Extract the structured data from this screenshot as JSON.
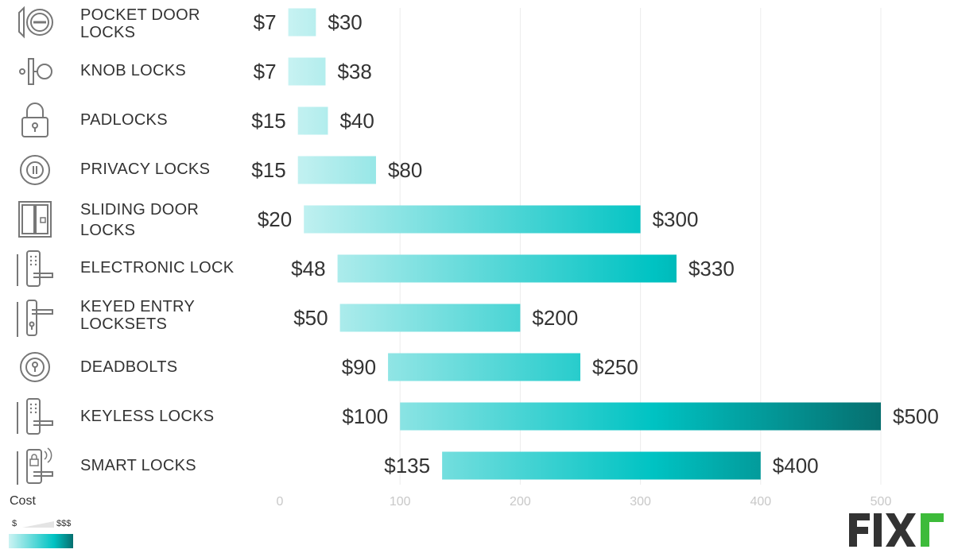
{
  "chart_data": {
    "type": "bar",
    "subtype": "floating-range",
    "categories": [
      "POCKET DOOR LOCKS",
      "KNOB LOCKS",
      "PADLOCKS",
      "PRIVACY LOCKS",
      "SLIDING DOOR LOCKS",
      "ELECTRONIC LOCK",
      "KEYED ENTRY LOCKSETS",
      "DEADBOLTS",
      "KEYLESS LOCKS",
      "SMART LOCKS"
    ],
    "ranges": [
      {
        "low": 7,
        "high": 30,
        "low_label": "$7",
        "high_label": "$30"
      },
      {
        "low": 7,
        "high": 38,
        "low_label": "$7",
        "high_label": "$38"
      },
      {
        "low": 15,
        "high": 40,
        "low_label": "$15",
        "high_label": "$40"
      },
      {
        "low": 15,
        "high": 80,
        "low_label": "$15",
        "high_label": "$80"
      },
      {
        "low": 20,
        "high": 300,
        "low_label": "$20",
        "high_label": "$300"
      },
      {
        "low": 48,
        "high": 330,
        "low_label": "$48",
        "high_label": "$330"
      },
      {
        "low": 50,
        "high": 200,
        "low_label": "$50",
        "high_label": "$200"
      },
      {
        "low": 90,
        "high": 250,
        "low_label": "$90",
        "high_label": "$250"
      },
      {
        "low": 100,
        "high": 500,
        "low_label": "$100",
        "high_label": "$500"
      },
      {
        "low": 135,
        "high": 400,
        "low_label": "$135",
        "high_label": "$400"
      }
    ],
    "xlim": [
      0,
      500
    ],
    "xticks": [
      0,
      100,
      200,
      300,
      400,
      500
    ],
    "grid": true,
    "colors": {
      "low": "#ccf3f3",
      "mid": "#00c3c3",
      "high": "#066f6f"
    }
  },
  "rows": [
    {
      "label": "POCKET DOOR LOCKS",
      "icon": "pocket-door-lock-icon"
    },
    {
      "label": "KNOB LOCKS",
      "icon": "knob-lock-icon"
    },
    {
      "label": "PADLOCKS",
      "icon": "padlock-icon"
    },
    {
      "label": "PRIVACY LOCKS",
      "icon": "privacy-lock-icon"
    },
    {
      "label": "SLIDING DOOR LOCKS",
      "icon": "sliding-door-lock-icon"
    },
    {
      "label": "ELECTRONIC LOCK",
      "icon": "electronic-lock-icon"
    },
    {
      "label": "KEYED ENTRY LOCKSETS",
      "icon": "keyed-entry-lockset-icon"
    },
    {
      "label": "DEADBOLTS",
      "icon": "deadbolt-icon"
    },
    {
      "label": "KEYLESS LOCKS",
      "icon": "keyless-lock-icon"
    },
    {
      "label": "SMART LOCKS",
      "icon": "smart-lock-icon"
    }
  ],
  "legend": {
    "title": "Cost",
    "low_label": "$",
    "high_label": "$$$"
  },
  "brand": {
    "name": "FIXR"
  }
}
